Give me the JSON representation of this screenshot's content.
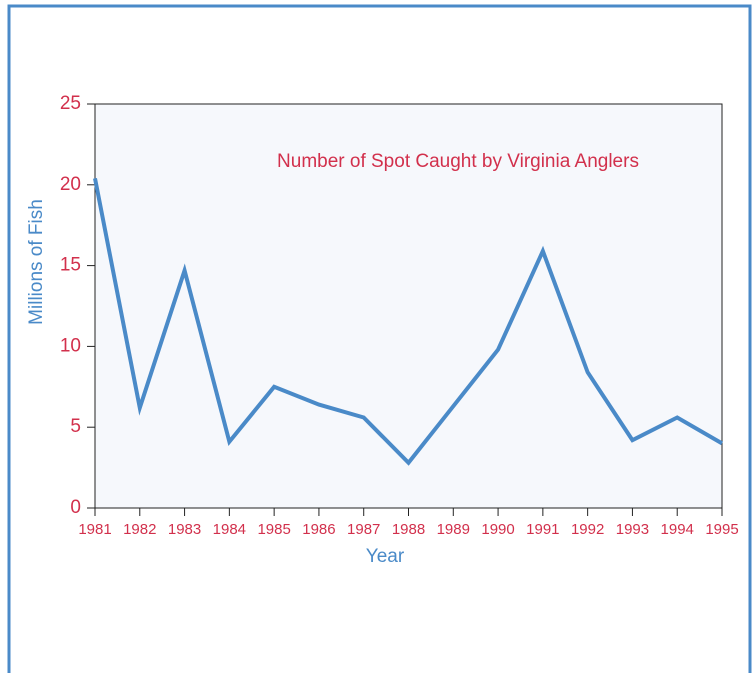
{
  "chart_data": {
    "type": "line",
    "title": "Number of Spot Caught by Virginia Anglers",
    "x_label": "Year",
    "y_label": "Millions of Fish",
    "x": [
      1981,
      1982,
      1983,
      1984,
      1985,
      1986,
      1987,
      1988,
      1989,
      1990,
      1991,
      1992,
      1993,
      1994,
      1995
    ],
    "series": [
      {
        "name": "Spot",
        "color": "#4a8ac8",
        "values": [
          20.4,
          6.2,
          14.7,
          4.1,
          7.5,
          6.4,
          5.6,
          2.8,
          6.3,
          9.8,
          15.9,
          8.4,
          4.2,
          5.6,
          4.0
        ]
      }
    ],
    "xlim": [
      1981,
      1995
    ],
    "xticks": [
      1981,
      1982,
      1983,
      1984,
      1985,
      1986,
      1987,
      1988,
      1989,
      1990,
      1991,
      1992,
      1993,
      1994,
      1995
    ],
    "ylim": [
      0,
      25
    ],
    "yticks": [
      0,
      5,
      10,
      15,
      20,
      25
    ],
    "tick_color": "#d2304c",
    "label_color": "#4a8ac8",
    "title_color": "#d2304c",
    "plot_background": "#f6f8fc"
  }
}
